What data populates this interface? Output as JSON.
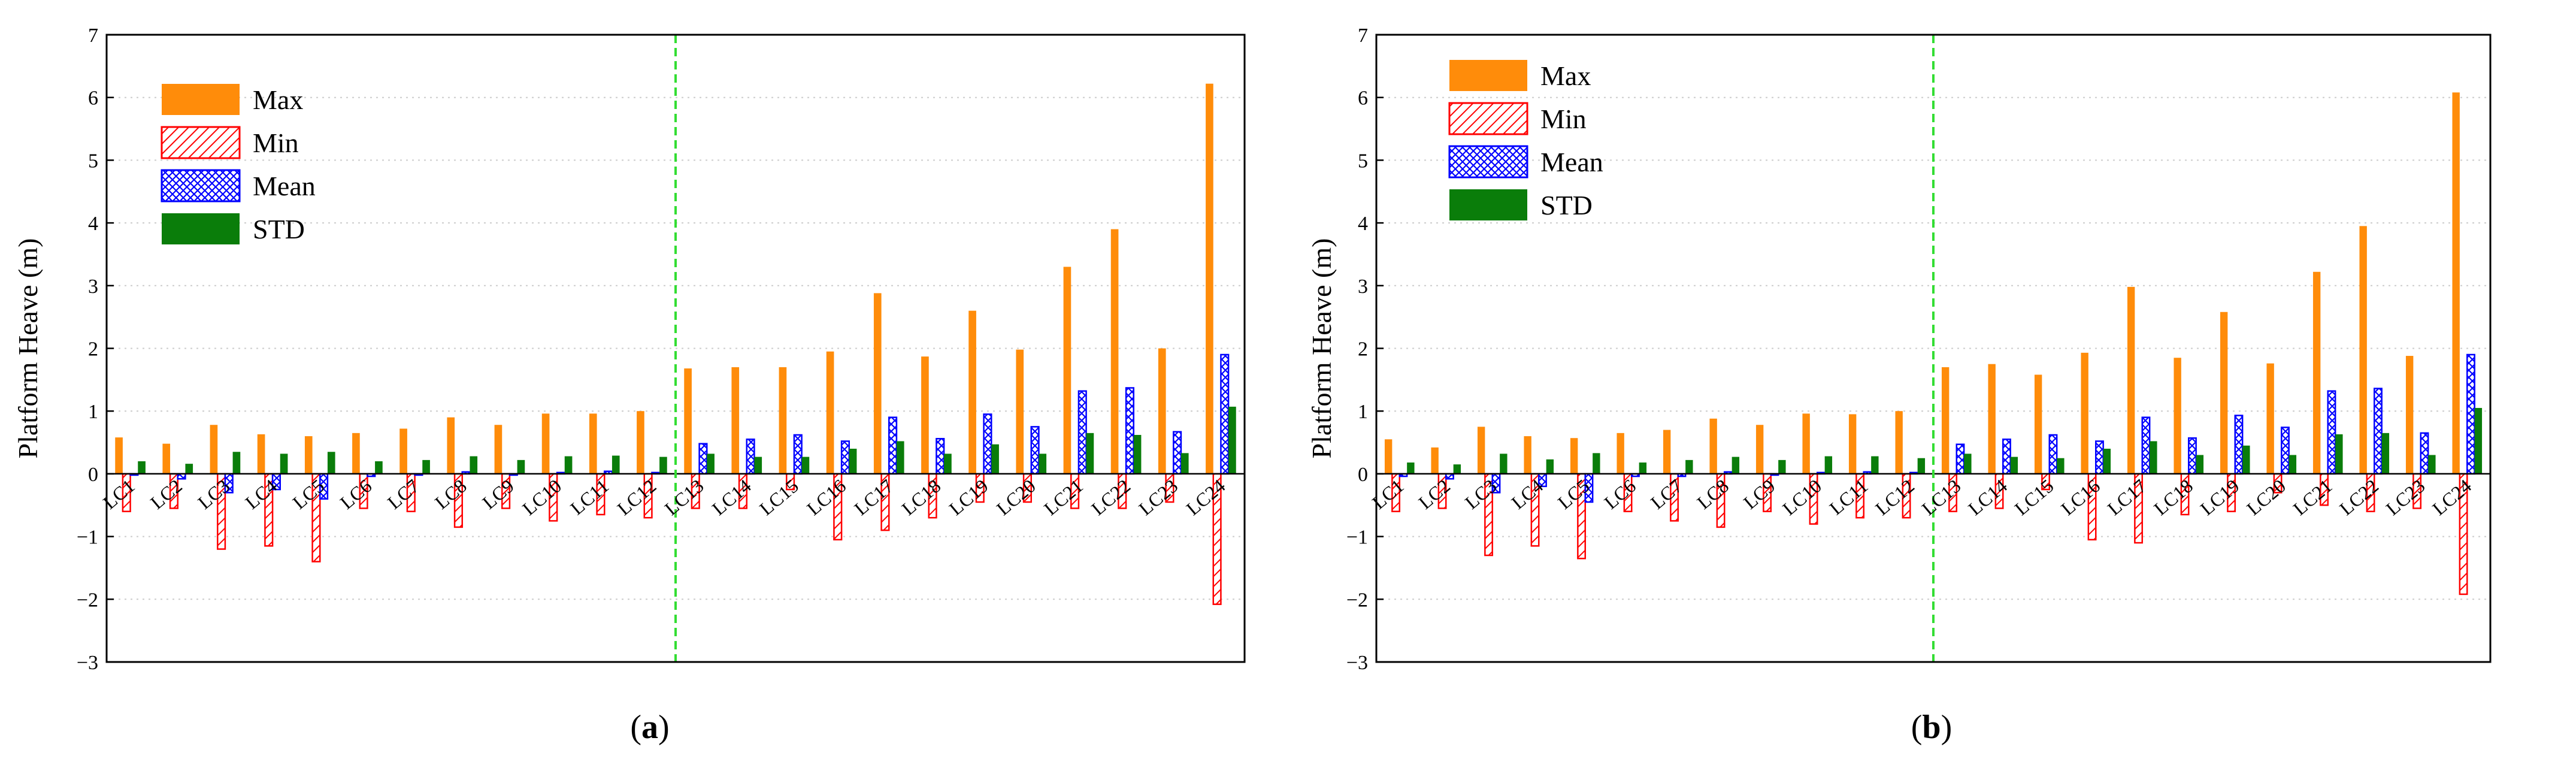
{
  "chart_data": [
    {
      "type": "bar",
      "panel_label": "a",
      "ylabel": "Platform Heave (m)",
      "ylim": [
        -3,
        7
      ],
      "yticks": [
        -3,
        -2,
        -1,
        0,
        1,
        2,
        3,
        4,
        5,
        6,
        7
      ],
      "ytick_labels": [
        "−3",
        "−2",
        "−1",
        "0",
        "1",
        "2",
        "3",
        "4",
        "5",
        "6",
        "7"
      ],
      "categories": [
        "LC1",
        "LC2",
        "LC3",
        "LC4",
        "LC5",
        "LC6",
        "LC7",
        "LC8",
        "LC9",
        "LC10",
        "LC11",
        "LC12",
        "LC13",
        "LC14",
        "LC15",
        "LC16",
        "LC17",
        "LC18",
        "LC19",
        "LC20",
        "LC21",
        "LC22",
        "LC23",
        "LC24"
      ],
      "divider_after_category": "LC12",
      "divider_color": "#33dd33",
      "legend": {
        "position": "top-left",
        "entries": [
          "Max",
          "Min",
          "Mean",
          "STD"
        ]
      },
      "series": [
        {
          "name": "Max",
          "color": "#ff8c0a",
          "pattern": "solid",
          "values": [
            0.58,
            0.48,
            0.78,
            0.63,
            0.6,
            0.65,
            0.72,
            0.9,
            0.78,
            0.96,
            0.96,
            1.0,
            1.68,
            1.7,
            1.7,
            1.95,
            2.88,
            1.87,
            2.6,
            1.98,
            3.3,
            3.9,
            2.0,
            6.22
          ]
        },
        {
          "name": "Min",
          "color": "#ff0000",
          "pattern": "diagonal",
          "values": [
            -0.6,
            -0.55,
            -1.2,
            -1.15,
            -1.4,
            -0.55,
            -0.6,
            -0.85,
            -0.55,
            -0.75,
            -0.65,
            -0.7,
            -0.55,
            -0.55,
            -0.25,
            -1.05,
            -0.9,
            -0.7,
            -0.45,
            -0.45,
            -0.55,
            -0.55,
            -0.45,
            -2.08
          ]
        },
        {
          "name": "Mean",
          "color": "#0000ff",
          "pattern": "crosshatch",
          "values": [
            -0.02,
            -0.08,
            -0.3,
            -0.25,
            -0.4,
            -0.04,
            -0.02,
            0.03,
            -0.02,
            0.02,
            0.04,
            0.02,
            0.48,
            0.55,
            0.62,
            0.52,
            0.9,
            0.56,
            0.95,
            0.75,
            1.32,
            1.37,
            0.67,
            1.9
          ]
        },
        {
          "name": "STD",
          "color": "#0a7d0a",
          "pattern": "solid",
          "values": [
            0.2,
            0.16,
            0.35,
            0.32,
            0.35,
            0.2,
            0.22,
            0.28,
            0.22,
            0.28,
            0.29,
            0.27,
            0.32,
            0.27,
            0.27,
            0.4,
            0.52,
            0.32,
            0.47,
            0.32,
            0.65,
            0.62,
            0.33,
            1.07
          ]
        }
      ]
    },
    {
      "type": "bar",
      "panel_label": "b",
      "ylabel": "Platform Heave (m)",
      "ylim": [
        -3,
        7
      ],
      "yticks": [
        -3,
        -2,
        -1,
        0,
        1,
        2,
        3,
        4,
        5,
        6,
        7
      ],
      "ytick_labels": [
        "−3",
        "−2",
        "−1",
        "0",
        "1",
        "2",
        "3",
        "4",
        "5",
        "6",
        "7"
      ],
      "categories": [
        "LC1",
        "LC2",
        "LC3",
        "LC4",
        "LC5",
        "LC6",
        "LC7",
        "LC8",
        "LC9",
        "LC10",
        "LC11",
        "LC12",
        "LC13",
        "LC14",
        "LC15",
        "LC16",
        "LC17",
        "LC18",
        "LC19",
        "LC20",
        "LC21",
        "LC22",
        "LC23",
        "LC24"
      ],
      "divider_after_category": "LC12",
      "divider_color": "#33dd33",
      "legend": {
        "position": "top-left",
        "entries": [
          "Max",
          "Min",
          "Mean",
          "STD"
        ]
      },
      "series": [
        {
          "name": "Max",
          "color": "#ff8c0a",
          "pattern": "solid",
          "values": [
            0.55,
            0.42,
            0.75,
            0.6,
            0.57,
            0.65,
            0.7,
            0.88,
            0.78,
            0.96,
            0.95,
            1.0,
            1.7,
            1.75,
            1.58,
            1.93,
            2.98,
            1.85,
            2.58,
            1.76,
            3.22,
            3.95,
            1.88,
            6.08
          ]
        },
        {
          "name": "Min",
          "color": "#ff0000",
          "pattern": "diagonal",
          "values": [
            -0.6,
            -0.55,
            -1.3,
            -1.15,
            -1.35,
            -0.6,
            -0.75,
            -0.85,
            -0.6,
            -0.8,
            -0.7,
            -0.7,
            -0.6,
            -0.55,
            -0.25,
            -1.05,
            -1.1,
            -0.65,
            -0.6,
            -0.3,
            -0.5,
            -0.6,
            -0.55,
            -1.92
          ]
        },
        {
          "name": "Mean",
          "color": "#0000ff",
          "pattern": "crosshatch",
          "values": [
            -0.04,
            -0.08,
            -0.3,
            -0.2,
            -0.45,
            -0.04,
            -0.04,
            0.03,
            -0.02,
            0.02,
            0.03,
            0.02,
            0.47,
            0.55,
            0.62,
            0.52,
            0.9,
            0.57,
            0.93,
            0.74,
            1.32,
            1.36,
            0.65,
            1.9
          ]
        },
        {
          "name": "STD",
          "color": "#0a7d0a",
          "pattern": "solid",
          "values": [
            0.18,
            0.15,
            0.32,
            0.23,
            0.33,
            0.18,
            0.22,
            0.27,
            0.22,
            0.28,
            0.28,
            0.25,
            0.32,
            0.27,
            0.25,
            0.4,
            0.52,
            0.3,
            0.45,
            0.3,
            0.63,
            0.65,
            0.3,
            1.05
          ]
        }
      ]
    }
  ]
}
